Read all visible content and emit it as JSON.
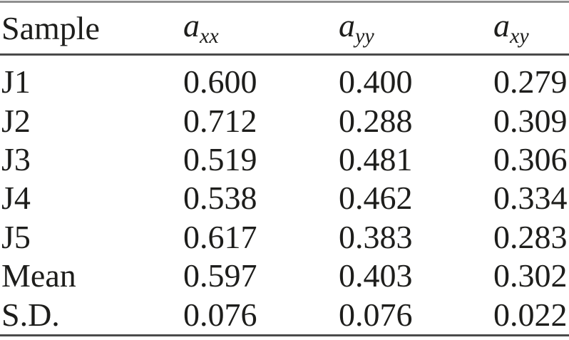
{
  "table": {
    "columns": [
      {
        "label": "Sample"
      },
      {
        "base": "a",
        "sub": "xx"
      },
      {
        "base": "a",
        "sub": "yy"
      },
      {
        "base": "a",
        "sub": "xy"
      }
    ],
    "rows": [
      {
        "sample": "J1",
        "axx": "0.600",
        "ayy": "0.400",
        "axy": "0.279"
      },
      {
        "sample": "J2",
        "axx": "0.712",
        "ayy": "0.288",
        "axy": "0.309"
      },
      {
        "sample": "J3",
        "axx": "0.519",
        "ayy": "0.481",
        "axy": "0.306"
      },
      {
        "sample": "J4",
        "axx": "0.538",
        "ayy": "0.462",
        "axy": "0.334"
      },
      {
        "sample": "J5",
        "axx": "0.617",
        "ayy": "0.383",
        "axy": "0.283"
      },
      {
        "sample": "Mean",
        "axx": "0.597",
        "ayy": "0.403",
        "axy": "0.302"
      },
      {
        "sample": "S.D.",
        "axx": "0.076",
        "ayy": "0.076",
        "axy": "0.022"
      }
    ]
  },
  "colors": {
    "text": "#1d1d1b",
    "rule_dark": "#4a4a4a",
    "rule_light": "#8f8f8f",
    "background": "#ffffff"
  }
}
